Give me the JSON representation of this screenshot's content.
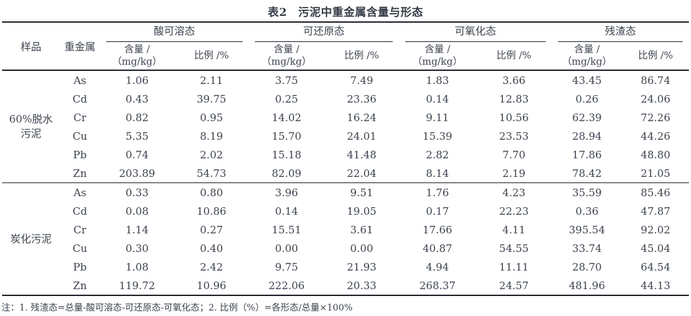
{
  "title": {
    "tag": "表2",
    "text": "污泥中重金属含量与形态"
  },
  "header": {
    "sample": "样品",
    "metal": "重金属",
    "groups": [
      "酸可溶态",
      "可还原态",
      "可氧化态",
      "残渣态"
    ],
    "content_line1": "含量 /",
    "content_line2": "（mg/kg）",
    "ratio": "比例 /%"
  },
  "body": {
    "groups": [
      {
        "sample": "60%脱水污泥",
        "sample_lines": [
          "60%脱水",
          "污泥"
        ],
        "rows": [
          {
            "metal": "As",
            "values": [
              "1.06",
              "2.11",
              "3.75",
              "7.49",
              "1.83",
              "3.66",
              "43.45",
              "86.74"
            ]
          },
          {
            "metal": "Cd",
            "values": [
              "0.43",
              "39.75",
              "0.25",
              "23.36",
              "0.14",
              "12.83",
              "0.26",
              "24.06"
            ]
          },
          {
            "metal": "Cr",
            "values": [
              "0.82",
              "0.95",
              "14.02",
              "16.24",
              "9.11",
              "10.56",
              "62.39",
              "72.26"
            ]
          },
          {
            "metal": "Cu",
            "values": [
              "5.35",
              "8.19",
              "15.70",
              "24.01",
              "15.39",
              "23.53",
              "28.94",
              "44.26"
            ]
          },
          {
            "metal": "Pb",
            "values": [
              "0.74",
              "2.02",
              "15.18",
              "41.48",
              "2.82",
              "7.70",
              "17.86",
              "48.80"
            ]
          },
          {
            "metal": "Zn",
            "values": [
              "203.89",
              "54.73",
              "82.09",
              "22.04",
              "8.14",
              "2.19",
              "78.42",
              "21.05"
            ]
          }
        ]
      },
      {
        "sample": "炭化污泥",
        "sample_lines": [
          "炭化污泥"
        ],
        "rows": [
          {
            "metal": "As",
            "values": [
              "0.33",
              "0.80",
              "3.96",
              "9.51",
              "1.76",
              "4.23",
              "35.59",
              "85.46"
            ]
          },
          {
            "metal": "Cd",
            "values": [
              "0.08",
              "10.86",
              "0.14",
              "19.05",
              "0.17",
              "22.23",
              "0.36",
              "47.87"
            ]
          },
          {
            "metal": "Cr",
            "values": [
              "1.14",
              "0.27",
              "15.51",
              "3.61",
              "17.66",
              "4.11",
              "395.54",
              "92.02"
            ]
          },
          {
            "metal": "Cu",
            "values": [
              "0.30",
              "0.40",
              "0.00",
              "0.00",
              "40.87",
              "54.55",
              "33.74",
              "45.04"
            ]
          },
          {
            "metal": "Pb",
            "values": [
              "1.08",
              "2.42",
              "9.75",
              "21.93",
              "4.94",
              "11.11",
              "28.70",
              "64.54"
            ]
          },
          {
            "metal": "Zn",
            "values": [
              "119.72",
              "10.96",
              "222.06",
              "20.33",
              "268.37",
              "24.57",
              "481.96",
              "44.13"
            ]
          }
        ]
      }
    ]
  },
  "note": "注：1. 残渣态=总量-酸可溶态-可还原态-可氧化态；2. 比例（%）=各形态/总量×100%"
}
